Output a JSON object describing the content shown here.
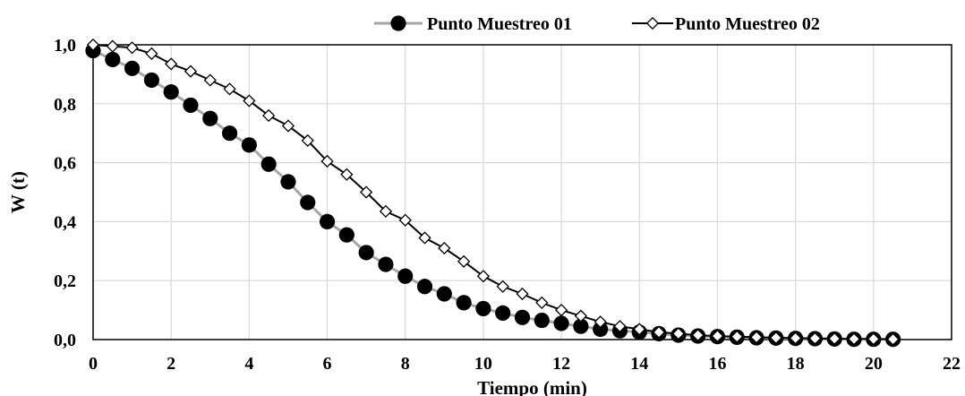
{
  "chart_data": {
    "type": "line",
    "xlabel": "Tiempo (min)",
    "ylabel": "W (t)",
    "xlim": [
      0,
      22
    ],
    "ylim": [
      0,
      1
    ],
    "xticks": [
      "0",
      "2",
      "4",
      "6",
      "8",
      "10",
      "12",
      "14",
      "16",
      "18",
      "20",
      "22"
    ],
    "yticks": [
      "0,0",
      "0,2",
      "0,4",
      "0,6",
      "0,8",
      "1,0"
    ],
    "grid": true,
    "legend_position": "top",
    "series": [
      {
        "name": "Punto Muestreo 01",
        "color": "#000000",
        "line_color": "#a6a6a6",
        "marker": "filled-circle",
        "x": [
          0,
          0.5,
          1,
          1.5,
          2,
          2.5,
          3,
          3.5,
          4,
          4.5,
          5,
          5.5,
          6,
          6.5,
          7,
          7.5,
          8,
          8.5,
          9,
          9.5,
          10,
          10.5,
          11,
          11.5,
          12,
          12.5,
          13,
          13.5,
          14,
          14.5,
          15,
          15.5,
          16,
          16.5,
          17,
          17.5,
          18,
          18.5,
          19,
          19.5,
          20,
          20.5
        ],
        "values": [
          0.98,
          0.95,
          0.92,
          0.88,
          0.84,
          0.795,
          0.75,
          0.7,
          0.66,
          0.595,
          0.535,
          0.465,
          0.4,
          0.355,
          0.295,
          0.255,
          0.215,
          0.18,
          0.155,
          0.125,
          0.105,
          0.09,
          0.075,
          0.065,
          0.055,
          0.045,
          0.035,
          0.03,
          0.025,
          0.02,
          0.015,
          0.012,
          0.01,
          0.008,
          0.006,
          0.005,
          0.004,
          0.003,
          0.002,
          0.001,
          0.001,
          0.001
        ]
      },
      {
        "name": "Punto Muestreo 02",
        "color": "#000000",
        "line_color": "#000000",
        "marker": "open-diamond",
        "x": [
          0,
          0.5,
          1,
          1.5,
          2,
          2.5,
          3,
          3.5,
          4,
          4.5,
          5,
          5.5,
          6,
          6.5,
          7,
          7.5,
          8,
          8.5,
          9,
          9.5,
          10,
          10.5,
          11,
          11.5,
          12,
          12.5,
          13,
          13.5,
          14,
          14.5,
          15,
          15.5,
          16,
          16.5,
          17,
          17.5,
          18,
          18.5,
          19,
          19.5,
          20,
          20.5
        ],
        "values": [
          1.0,
          0.995,
          0.99,
          0.97,
          0.935,
          0.91,
          0.88,
          0.85,
          0.81,
          0.76,
          0.725,
          0.675,
          0.605,
          0.56,
          0.5,
          0.435,
          0.405,
          0.345,
          0.31,
          0.265,
          0.215,
          0.18,
          0.155,
          0.125,
          0.1,
          0.08,
          0.06,
          0.045,
          0.035,
          0.025,
          0.02,
          0.015,
          0.012,
          0.01,
          0.008,
          0.006,
          0.005,
          0.004,
          0.003,
          0.002,
          0.002,
          0.001
        ]
      }
    ]
  }
}
